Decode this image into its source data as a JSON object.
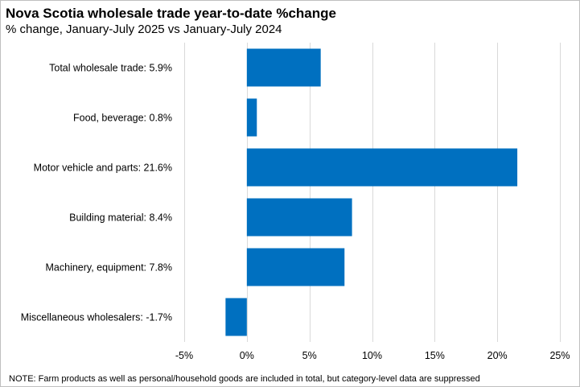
{
  "chart_data": {
    "type": "bar",
    "orientation": "horizontal",
    "title": "Nova Scotia wholesale trade year-to-date %change",
    "subtitle": "% change, January-July 2025 vs January-July 2024",
    "categories": [
      "Total wholesale trade: 5.9%",
      "Food, beverage: 0.8%",
      "Motor vehicle and parts: 21.6%",
      "Building material: 8.4%",
      "Machinery, equipment: 7.8%",
      "Miscellaneous wholesalers: -1.7%"
    ],
    "values": [
      5.9,
      0.8,
      21.6,
      8.4,
      7.8,
      -1.7
    ],
    "xlim": [
      -5,
      25
    ],
    "xticks": [
      -5,
      0,
      5,
      10,
      15,
      20,
      25
    ],
    "xtick_labels": [
      "-5%",
      "0%",
      "5%",
      "10%",
      "15%",
      "20%",
      "25%"
    ],
    "xlabel": "",
    "ylabel": "",
    "grid": true,
    "bar_color": "#0070c0"
  },
  "note": "NOTE:  Farm products as well as personal/household goods are included in total, but category-level  data are suppressed"
}
